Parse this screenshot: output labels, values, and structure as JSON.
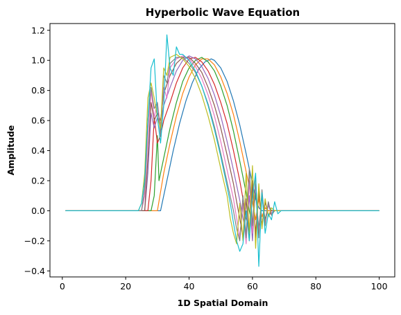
{
  "chart_data": {
    "type": "line",
    "title": "Hyperbolic Wave Equation",
    "xlabel": "1D Spatial Domain",
    "ylabel": "Amplitude",
    "xlim": [
      -3.9,
      104.9
    ],
    "ylim": [
      -0.44,
      1.245
    ],
    "xticks": [
      0,
      20,
      40,
      60,
      80,
      100
    ],
    "yticks": [
      -0.4,
      -0.2,
      0.0,
      0.2,
      0.4,
      0.6,
      0.8,
      1.0,
      1.2
    ],
    "grid": false,
    "legend": "none",
    "series": [
      {
        "color": "#1f77b4",
        "values": [
          [
            1,
            0
          ],
          [
            30,
            0
          ],
          [
            31,
            0
          ],
          [
            33,
            0.2
          ],
          [
            35,
            0.4
          ],
          [
            37,
            0.58
          ],
          [
            39,
            0.73
          ],
          [
            41,
            0.85
          ],
          [
            43,
            0.94
          ],
          [
            45,
            0.99
          ],
          [
            47,
            1.01
          ],
          [
            48,
            1.0
          ],
          [
            50,
            0.95
          ],
          [
            52,
            0.86
          ],
          [
            54,
            0.73
          ],
          [
            56,
            0.57
          ],
          [
            58,
            0.38
          ],
          [
            60,
            0.18
          ],
          [
            61,
            0.08
          ],
          [
            62,
            0.02
          ],
          [
            63,
            0
          ],
          [
            100,
            0
          ]
        ]
      },
      {
        "color": "#ff7f0e",
        "values": [
          [
            1,
            0
          ],
          [
            29,
            0
          ],
          [
            30,
            0
          ],
          [
            32,
            0.25
          ],
          [
            34,
            0.45
          ],
          [
            36,
            0.63
          ],
          [
            38,
            0.78
          ],
          [
            40,
            0.89
          ],
          [
            42,
            0.97
          ],
          [
            44,
            1.01
          ],
          [
            46,
            1.01
          ],
          [
            48,
            0.97
          ],
          [
            50,
            0.89
          ],
          [
            52,
            0.78
          ],
          [
            54,
            0.64
          ],
          [
            56,
            0.46
          ],
          [
            58,
            0.26
          ],
          [
            60,
            0.06
          ],
          [
            61,
            -0.06
          ],
          [
            62,
            0.08
          ],
          [
            63,
            -0.04
          ],
          [
            64,
            0.02
          ],
          [
            65,
            0
          ],
          [
            100,
            0
          ]
        ]
      },
      {
        "color": "#2ca02c",
        "values": [
          [
            1,
            0
          ],
          [
            28,
            0
          ],
          [
            29,
            0.1
          ],
          [
            30,
            0.5
          ],
          [
            30.5,
            0.2
          ],
          [
            32,
            0.35
          ],
          [
            34,
            0.55
          ],
          [
            36,
            0.72
          ],
          [
            38,
            0.86
          ],
          [
            40,
            0.95
          ],
          [
            42,
            1.0
          ],
          [
            44,
            1.02
          ],
          [
            46,
            0.99
          ],
          [
            48,
            0.93
          ],
          [
            50,
            0.83
          ],
          [
            52,
            0.7
          ],
          [
            54,
            0.53
          ],
          [
            56,
            0.33
          ],
          [
            58,
            0.12
          ],
          [
            59,
            0.0
          ],
          [
            60,
            -0.1
          ],
          [
            61,
            0.12
          ],
          [
            62,
            -0.12
          ],
          [
            63,
            0.1
          ],
          [
            64,
            -0.06
          ],
          [
            65,
            0.04
          ],
          [
            66,
            0
          ],
          [
            100,
            0
          ]
        ]
      },
      {
        "color": "#d62728",
        "values": [
          [
            1,
            0
          ],
          [
            27,
            0
          ],
          [
            28,
            0.2
          ],
          [
            29,
            0.62
          ],
          [
            30,
            0.45
          ],
          [
            31,
            0.5
          ],
          [
            32,
            0.6
          ],
          [
            34,
            0.72
          ],
          [
            36,
            0.85
          ],
          [
            38,
            0.95
          ],
          [
            40,
            1.01
          ],
          [
            42,
            1.02
          ],
          [
            44,
            0.99
          ],
          [
            46,
            0.93
          ],
          [
            48,
            0.84
          ],
          [
            50,
            0.72
          ],
          [
            52,
            0.58
          ],
          [
            54,
            0.4
          ],
          [
            56,
            0.2
          ],
          [
            57,
            0.08
          ],
          [
            58,
            -0.05
          ],
          [
            59,
            -0.12
          ],
          [
            60,
            0.15
          ],
          [
            61,
            -0.15
          ],
          [
            62,
            0.12
          ],
          [
            63,
            -0.1
          ],
          [
            64,
            0.06
          ],
          [
            65,
            -0.03
          ],
          [
            66,
            0
          ],
          [
            100,
            0
          ]
        ]
      },
      {
        "color": "#9467bd",
        "values": [
          [
            1,
            0
          ],
          [
            26,
            0
          ],
          [
            27,
            0.25
          ],
          [
            28,
            0.65
          ],
          [
            29,
            0.55
          ],
          [
            30,
            0.62
          ],
          [
            31,
            0.58
          ],
          [
            32,
            0.7
          ],
          [
            34,
            0.82
          ],
          [
            36,
            0.93
          ],
          [
            38,
            1.0
          ],
          [
            40,
            1.03
          ],
          [
            42,
            1.01
          ],
          [
            44,
            0.96
          ],
          [
            46,
            0.88
          ],
          [
            48,
            0.77
          ],
          [
            50,
            0.63
          ],
          [
            52,
            0.46
          ],
          [
            54,
            0.27
          ],
          [
            56,
            0.07
          ],
          [
            57,
            -0.05
          ],
          [
            58,
            -0.15
          ],
          [
            59,
            0.1
          ],
          [
            60,
            -0.2
          ],
          [
            61,
            0.18
          ],
          [
            62,
            -0.15
          ],
          [
            63,
            0.1
          ],
          [
            64,
            -0.08
          ],
          [
            65,
            0.04
          ],
          [
            66,
            -0.02
          ],
          [
            67,
            0
          ],
          [
            100,
            0
          ]
        ]
      },
      {
        "color": "#8c564b",
        "values": [
          [
            1,
            0
          ],
          [
            26,
            0
          ],
          [
            27,
            0.35
          ],
          [
            28,
            0.72
          ],
          [
            29,
            0.6
          ],
          [
            30,
            0.65
          ],
          [
            31,
            0.6
          ],
          [
            32,
            0.78
          ],
          [
            34,
            0.9
          ],
          [
            36,
            0.98
          ],
          [
            38,
            1.02
          ],
          [
            40,
            1.02
          ],
          [
            42,
            0.98
          ],
          [
            44,
            0.92
          ],
          [
            46,
            0.82
          ],
          [
            48,
            0.7
          ],
          [
            50,
            0.55
          ],
          [
            52,
            0.37
          ],
          [
            54,
            0.18
          ],
          [
            55,
            0.06
          ],
          [
            56,
            -0.05
          ],
          [
            57,
            -0.18
          ],
          [
            58,
            0.08
          ],
          [
            59,
            -0.2
          ],
          [
            60,
            0.2
          ],
          [
            61,
            -0.18
          ],
          [
            62,
            0.14
          ],
          [
            63,
            -0.1
          ],
          [
            64,
            0.06
          ],
          [
            65,
            -0.03
          ],
          [
            67,
            0
          ],
          [
            100,
            0
          ]
        ]
      },
      {
        "color": "#e377c2",
        "values": [
          [
            1,
            0
          ],
          [
            25,
            0
          ],
          [
            26,
            0.1
          ],
          [
            27,
            0.5
          ],
          [
            28,
            0.8
          ],
          [
            29,
            0.62
          ],
          [
            30,
            0.72
          ],
          [
            31,
            0.55
          ],
          [
            32,
            0.82
          ],
          [
            33,
            0.75
          ],
          [
            34,
            0.95
          ],
          [
            36,
            1.01
          ],
          [
            38,
            1.03
          ],
          [
            40,
            1.01
          ],
          [
            42,
            0.96
          ],
          [
            44,
            0.88
          ],
          [
            46,
            0.77
          ],
          [
            48,
            0.63
          ],
          [
            50,
            0.46
          ],
          [
            52,
            0.27
          ],
          [
            54,
            0.08
          ],
          [
            55,
            -0.05
          ],
          [
            56,
            -0.18
          ],
          [
            57,
            0.05
          ],
          [
            58,
            -0.22
          ],
          [
            59,
            0.2
          ],
          [
            60,
            -0.15
          ],
          [
            61,
            0.2
          ],
          [
            62,
            -0.15
          ],
          [
            63,
            0.12
          ],
          [
            64,
            -0.08
          ],
          [
            65,
            0.05
          ],
          [
            66,
            -0.02
          ],
          [
            67,
            0
          ],
          [
            100,
            0
          ]
        ]
      },
      {
        "color": "#7f7f7f",
        "values": [
          [
            1,
            0
          ],
          [
            25,
            0
          ],
          [
            26,
            0.15
          ],
          [
            27,
            0.6
          ],
          [
            28,
            0.82
          ],
          [
            29,
            0.68
          ],
          [
            30,
            0.72
          ],
          [
            31,
            0.5
          ],
          [
            32,
            0.9
          ],
          [
            33,
            0.85
          ],
          [
            34,
            0.98
          ],
          [
            36,
            1.02
          ],
          [
            38,
            1.02
          ],
          [
            40,
            0.98
          ],
          [
            42,
            0.92
          ],
          [
            44,
            0.83
          ],
          [
            46,
            0.71
          ],
          [
            48,
            0.56
          ],
          [
            50,
            0.38
          ],
          [
            52,
            0.19
          ],
          [
            54,
            0.0
          ],
          [
            55,
            -0.12
          ],
          [
            56,
            -0.2
          ],
          [
            57,
            0.1
          ],
          [
            58,
            -0.18
          ],
          [
            59,
            0.28
          ],
          [
            60,
            -0.1
          ],
          [
            61,
            0.22
          ],
          [
            62,
            -0.18
          ],
          [
            63,
            0.14
          ],
          [
            64,
            -0.1
          ],
          [
            65,
            0.06
          ],
          [
            66,
            -0.03
          ],
          [
            67,
            0
          ],
          [
            100,
            0
          ]
        ]
      },
      {
        "color": "#bcbd22",
        "values": [
          [
            1,
            0
          ],
          [
            24,
            0
          ],
          [
            25,
            0.05
          ],
          [
            26,
            0.25
          ],
          [
            27,
            0.75
          ],
          [
            28,
            0.85
          ],
          [
            29,
            0.75
          ],
          [
            30,
            0.62
          ],
          [
            31,
            0.55
          ],
          [
            32,
            0.95
          ],
          [
            33,
            0.9
          ],
          [
            34,
            1.02
          ],
          [
            36,
            1.04
          ],
          [
            38,
            1.01
          ],
          [
            40,
            0.96
          ],
          [
            42,
            0.88
          ],
          [
            44,
            0.77
          ],
          [
            46,
            0.63
          ],
          [
            48,
            0.47
          ],
          [
            50,
            0.28
          ],
          [
            52,
            0.1
          ],
          [
            53,
            -0.05
          ],
          [
            54,
            -0.15
          ],
          [
            55,
            -0.22
          ],
          [
            56,
            0.05
          ],
          [
            57,
            -0.2
          ],
          [
            58,
            0.25
          ],
          [
            59,
            -0.15
          ],
          [
            60,
            0.3
          ],
          [
            61,
            -0.25
          ],
          [
            62,
            0.18
          ],
          [
            63,
            -0.12
          ],
          [
            64,
            0.08
          ],
          [
            65,
            -0.04
          ],
          [
            66,
            0.02
          ],
          [
            67,
            0
          ],
          [
            100,
            0
          ]
        ]
      },
      {
        "color": "#17becf",
        "values": [
          [
            1,
            0
          ],
          [
            24,
            0
          ],
          [
            25,
            0.05
          ],
          [
            26,
            0.2
          ],
          [
            27,
            0.6
          ],
          [
            28,
            0.95
          ],
          [
            29,
            1.01
          ],
          [
            30,
            0.62
          ],
          [
            31,
            0.45
          ],
          [
            32,
            0.7
          ],
          [
            33,
            1.17
          ],
          [
            34,
            0.95
          ],
          [
            35,
            0.9
          ],
          [
            36,
            1.09
          ],
          [
            37,
            1.04
          ],
          [
            38,
            1.04
          ],
          [
            40,
            1.0
          ],
          [
            42,
            0.93
          ],
          [
            44,
            0.83
          ],
          [
            46,
            0.7
          ],
          [
            48,
            0.54
          ],
          [
            50,
            0.36
          ],
          [
            52,
            0.16
          ],
          [
            53,
            0.05
          ],
          [
            54,
            -0.08
          ],
          [
            55,
            -0.2
          ],
          [
            56,
            -0.27
          ],
          [
            57,
            -0.22
          ],
          [
            58,
            0.0
          ],
          [
            59,
            -0.2
          ],
          [
            60,
            0.1
          ],
          [
            61,
            0.25
          ],
          [
            62,
            -0.37
          ],
          [
            63,
            0.12
          ],
          [
            64,
            -0.15
          ],
          [
            65,
            -0.02
          ],
          [
            66,
            -0.06
          ],
          [
            67,
            0.06
          ],
          [
            68,
            -0.02
          ],
          [
            69,
            0
          ],
          [
            100,
            0
          ]
        ]
      }
    ]
  }
}
